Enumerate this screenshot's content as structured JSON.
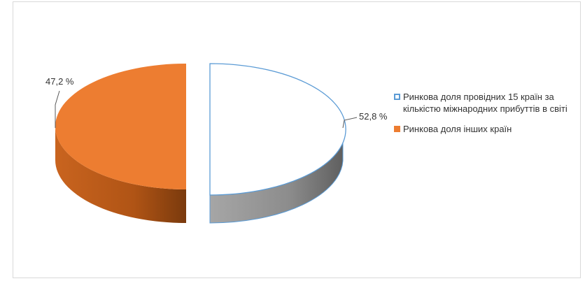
{
  "chart_data": {
    "type": "pie",
    "style": "3d-exploded",
    "series": [
      {
        "label": "52,8 %",
        "value": 52.8,
        "legend": "Ринкова доля провідних 15 країн за кількістю міжнародних прибуттів в світі",
        "fill": "#ffffff",
        "stroke": "#5b9bd5",
        "side_color": "#8a8a8a"
      },
      {
        "label": "47,2 %",
        "value": 47.2,
        "legend": "Ринкова доля інших країн",
        "fill": "#ed7d31",
        "stroke": "#ed7d31",
        "side_color": "#b45a1c"
      }
    ],
    "legend_position": "right"
  }
}
